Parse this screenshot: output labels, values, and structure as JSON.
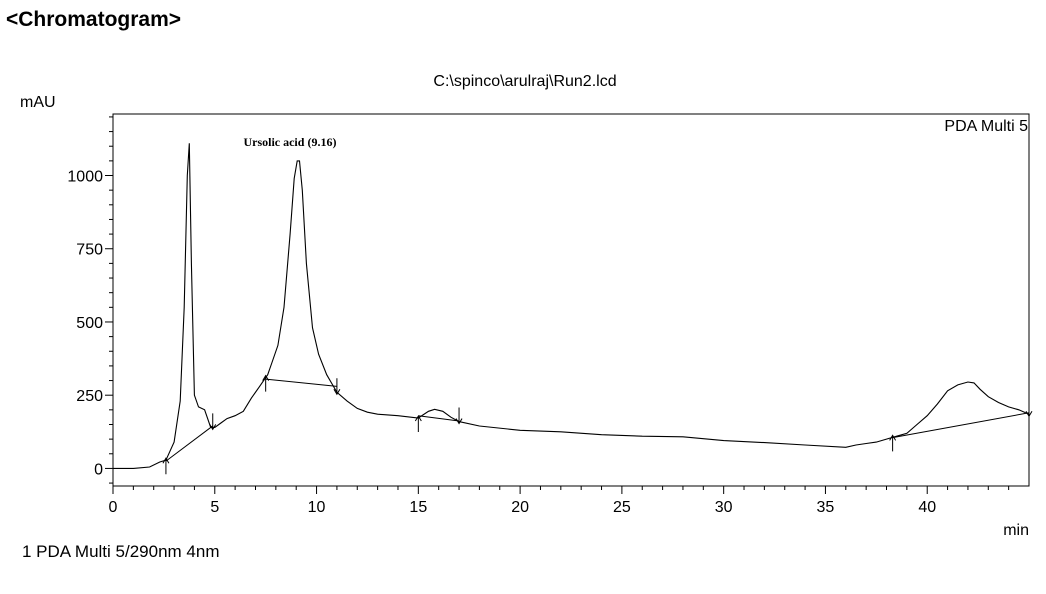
{
  "page": {
    "heading": "<Chromatogram>",
    "footer": "1  PDA Multi 5/290nm 4nm"
  },
  "chart_data": {
    "type": "line",
    "title": "C:\\spinco\\arulraj\\Run2.lcd",
    "corner_label": "PDA Multi 5",
    "xlabel": "min",
    "ylabel": "mAU",
    "xlim": [
      0,
      45
    ],
    "ylim": [
      -60,
      1210
    ],
    "x_ticks": [
      0,
      5,
      10,
      15,
      20,
      25,
      30,
      35,
      40
    ],
    "y_ticks": [
      0,
      250,
      500,
      750,
      1000
    ],
    "grid": false,
    "line_color": "#000000",
    "series": [
      {
        "x": [
          0,
          1.0,
          1.8,
          2.3,
          2.6,
          3.0,
          3.3,
          3.5,
          3.65,
          3.75,
          3.85,
          4.0,
          4.2,
          4.5,
          4.8,
          5.0,
          5.3,
          5.6,
          6.0,
          6.4,
          6.8,
          7.2,
          7.6,
          7.8,
          8.1,
          8.4,
          8.7,
          8.9,
          9.05,
          9.16,
          9.3,
          9.5,
          9.8,
          10.1,
          10.5,
          11.0,
          11.5,
          12.0,
          12.5,
          13.0,
          14.0,
          15.0,
          15.5,
          15.8,
          16.2,
          16.6,
          17.0,
          18.0,
          20.0,
          22.0,
          24.0,
          26.0,
          28.0,
          30.0,
          32.0,
          34.0,
          36.0,
          36.5,
          37.0,
          37.5,
          38.0,
          38.5,
          39.0,
          39.5,
          40.0,
          40.5,
          41.0,
          41.5,
          42.0,
          42.3,
          42.6,
          43.0,
          43.5,
          44.0,
          44.5,
          45.0
        ],
        "y": [
          0,
          0,
          5,
          22,
          28,
          90,
          230,
          550,
          1000,
          1110,
          700,
          250,
          210,
          200,
          140,
          140,
          155,
          170,
          180,
          195,
          240,
          280,
          320,
          360,
          420,
          550,
          800,
          990,
          1050,
          1050,
          950,
          700,
          480,
          390,
          320,
          260,
          230,
          205,
          192,
          185,
          180,
          172,
          195,
          202,
          195,
          175,
          160,
          145,
          130,
          125,
          115,
          110,
          108,
          95,
          88,
          80,
          72,
          80,
          85,
          90,
          100,
          110,
          120,
          150,
          180,
          220,
          265,
          285,
          295,
          292,
          270,
          245,
          225,
          210,
          200,
          185
        ]
      }
    ],
    "baselines": [
      [
        [
          2.6,
          25
        ],
        [
          4.9,
          145
        ]
      ],
      [
        [
          7.5,
          305
        ],
        [
          11.0,
          280
        ]
      ],
      [
        [
          15.0,
          180
        ],
        [
          17.0,
          162
        ]
      ],
      [
        [
          38.3,
          105
        ],
        [
          45.0,
          190
        ]
      ]
    ],
    "markers": [
      {
        "x": 2.6,
        "dir": "up"
      },
      {
        "x": 4.9,
        "dir": "down"
      },
      {
        "x": 7.5,
        "dir": "up"
      },
      {
        "x": 11.0,
        "dir": "down"
      },
      {
        "x": 15.0,
        "dir": "up"
      },
      {
        "x": 17.0,
        "dir": "down"
      },
      {
        "x": 38.3,
        "dir": "up"
      },
      {
        "x": 45.0,
        "dir": "down"
      }
    ],
    "annotations": [
      {
        "text": "Ursolic acid (9.16)",
        "x": 9.16,
        "y": 1100
      }
    ]
  }
}
